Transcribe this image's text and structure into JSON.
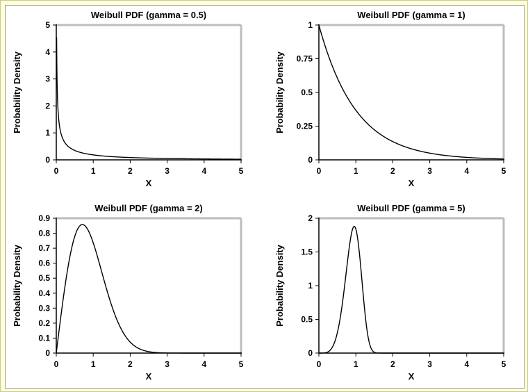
{
  "chart_data": [
    {
      "type": "line",
      "title": "Weibull PDF (gamma = 0.5)",
      "xlabel": "X",
      "ylabel": "Probability Density",
      "gamma": 0.5,
      "xlim": [
        0,
        5
      ],
      "ylim": [
        0,
        5
      ],
      "xticks": [
        "0",
        "1",
        "2",
        "3",
        "4",
        "5"
      ],
      "yticks": [
        "0",
        "1",
        "2",
        "3",
        "4",
        "5"
      ],
      "series": [
        {
          "x": [
            0.01,
            0.02,
            0.05,
            0.1,
            0.2,
            0.3,
            0.5,
            0.75,
            1,
            1.5,
            2,
            2.5,
            3,
            3.5,
            4,
            4.5,
            5
          ],
          "y": [
            4.52,
            3.07,
            1.79,
            1.15,
            0.71,
            0.53,
            0.35,
            0.24,
            0.18,
            0.12,
            0.09,
            0.06,
            0.05,
            0.04,
            0.03,
            0.03,
            0.02
          ]
        }
      ]
    },
    {
      "type": "line",
      "title": "Weibull PDF (gamma = 1)",
      "xlabel": "X",
      "ylabel": "Probability Density",
      "gamma": 1,
      "xlim": [
        0,
        5
      ],
      "ylim": [
        0,
        1
      ],
      "xticks": [
        "0",
        "1",
        "2",
        "3",
        "4",
        "5"
      ],
      "yticks": [
        "0",
        "0.25",
        "0.5",
        "0.75",
        "1"
      ],
      "series": [
        {
          "x": [
            0,
            0.25,
            0.5,
            0.75,
            1,
            1.5,
            2,
            2.5,
            3,
            3.5,
            4,
            4.5,
            5
          ],
          "y": [
            1.0,
            0.78,
            0.61,
            0.47,
            0.37,
            0.22,
            0.14,
            0.08,
            0.05,
            0.03,
            0.02,
            0.01,
            0.01
          ]
        }
      ]
    },
    {
      "type": "line",
      "title": "Weibull PDF (gamma = 2)",
      "xlabel": "X",
      "ylabel": "Probability Density",
      "gamma": 2,
      "xlim": [
        0,
        5
      ],
      "ylim": [
        0,
        0.9
      ],
      "xticks": [
        "0",
        "1",
        "2",
        "3",
        "4",
        "5"
      ],
      "yticks": [
        "0",
        "0.1",
        "0.2",
        "0.3",
        "0.4",
        "0.5",
        "0.6",
        "0.7",
        "0.8",
        "0.9"
      ],
      "series": [
        {
          "x": [
            0,
            0.2,
            0.4,
            0.6,
            0.71,
            0.8,
            1,
            1.2,
            1.4,
            1.6,
            1.8,
            2,
            2.2,
            2.4,
            2.6,
            2.8,
            3,
            3.5,
            4,
            5
          ],
          "y": [
            0,
            0.38,
            0.68,
            0.84,
            0.86,
            0.85,
            0.74,
            0.57,
            0.39,
            0.25,
            0.14,
            0.07,
            0.03,
            0.01,
            0.01,
            0.0,
            0.0,
            0.0,
            0.0,
            0.0
          ]
        }
      ]
    },
    {
      "type": "line",
      "title": "Weibull PDF (gamma = 5)",
      "xlabel": "X",
      "ylabel": "Probability Density",
      "gamma": 5,
      "xlim": [
        0,
        5
      ],
      "ylim": [
        0,
        2
      ],
      "xticks": [
        "0",
        "1",
        "2",
        "3",
        "4",
        "5"
      ],
      "yticks": [
        "0",
        "0.5",
        "1",
        "1.5",
        "2"
      ],
      "series": [
        {
          "x": [
            0,
            0.2,
            0.4,
            0.5,
            0.6,
            0.7,
            0.8,
            0.9,
            0.96,
            1,
            1.1,
            1.2,
            1.3,
            1.4,
            1.5,
            1.6,
            2,
            3,
            4,
            5
          ],
          "y": [
            0,
            0.01,
            0.13,
            0.3,
            0.59,
            1.02,
            1.47,
            1.81,
            1.86,
            1.84,
            1.47,
            0.85,
            0.33,
            0.08,
            0.01,
            0.0,
            0.0,
            0.0,
            0.0,
            0.0
          ]
        }
      ]
    }
  ]
}
